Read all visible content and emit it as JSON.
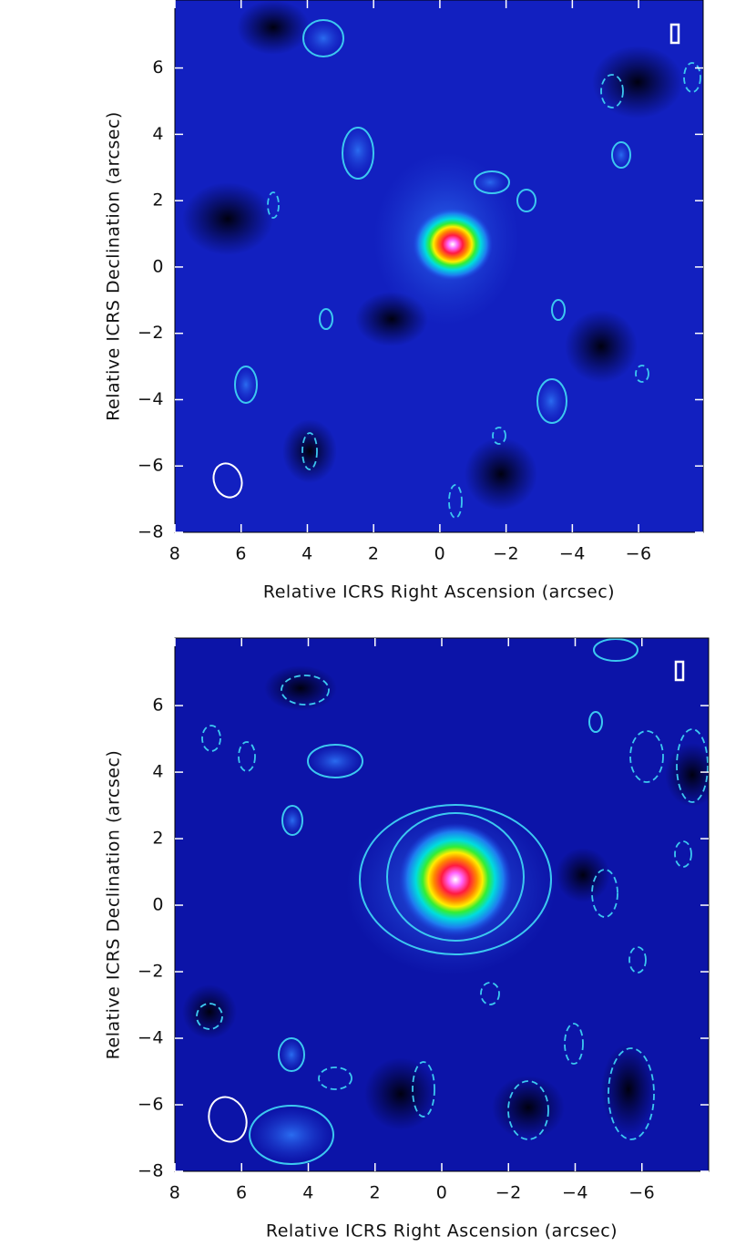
{
  "chart_data": [
    {
      "type": "image",
      "xlabel": "Relative ICRS Right Ascension (arcsec)",
      "ylabel": "Relative ICRS Declination (arcsec)",
      "xlim": [
        8,
        -7.95
      ],
      "ylim": [
        -8,
        8.05
      ],
      "xticks": [
        8,
        6,
        4,
        2,
        0,
        {
          "value": -2,
          "label": "−2"
        },
        {
          "value": -4,
          "label": "−4"
        },
        {
          "value": -6,
          "label": "−6"
        }
      ],
      "yticks": [
        {
          "value": -8,
          "label": "−8"
        },
        {
          "value": -6,
          "label": "−6"
        },
        {
          "value": -4,
          "label": "−4"
        },
        {
          "value": -2,
          "label": "−2"
        },
        0,
        2,
        4,
        6
      ]
    },
    {
      "type": "image",
      "xlabel": "Relative ICRS Right Ascension (arcsec)",
      "ylabel": "Relative ICRS Declination (arcsec)",
      "xlim": [
        8,
        -8.0
      ],
      "ylim": [
        -8,
        8.03
      ],
      "xticks": [
        8,
        6,
        4,
        2,
        0,
        {
          "value": -2,
          "label": "−2"
        },
        {
          "value": -4,
          "label": "−4"
        },
        {
          "value": -6,
          "label": "−6"
        }
      ],
      "yticks": [
        {
          "value": -8,
          "label": "−8"
        },
        {
          "value": -6,
          "label": "−6"
        },
        {
          "value": -4,
          "label": "−4"
        },
        {
          "value": -2,
          "label": "−2"
        },
        0,
        2,
        4,
        6
      ]
    }
  ]
}
